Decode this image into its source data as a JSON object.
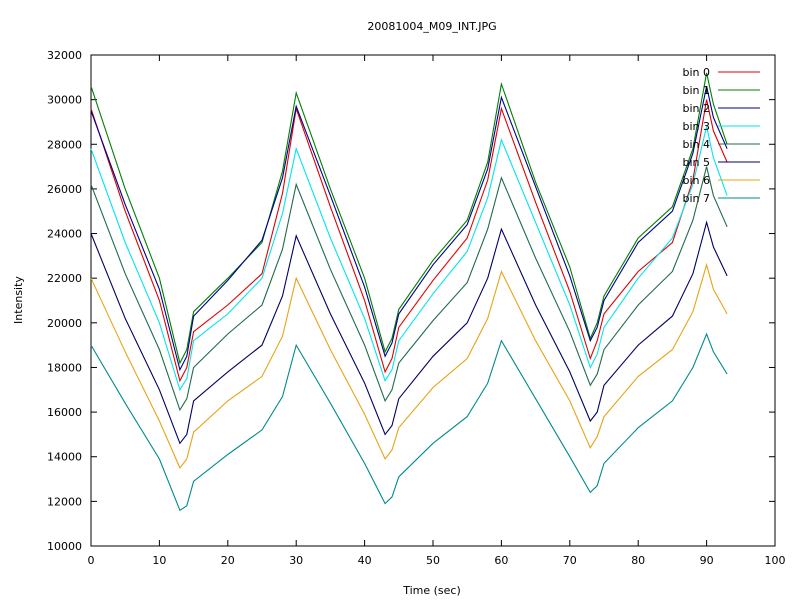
{
  "chart_data": {
    "type": "line",
    "title": "20081004_M09_INT.JPG",
    "xlabel": "Time (sec)",
    "ylabel": "Intensity",
    "xlim": [
      0,
      100
    ],
    "ylim": [
      10000,
      32000
    ],
    "xticks": [
      0,
      10,
      20,
      30,
      40,
      50,
      60,
      70,
      80,
      90,
      100
    ],
    "yticks": [
      10000,
      12000,
      14000,
      16000,
      18000,
      20000,
      22000,
      24000,
      26000,
      28000,
      30000,
      32000
    ],
    "xtick_labels": [
      "0",
      "10",
      "20",
      "30",
      "40",
      "50",
      "60",
      "70",
      "80",
      "90",
      "100"
    ],
    "ytick_labels": [
      "10000",
      "12000",
      "14000",
      "16000",
      "18000",
      "20000",
      "22000",
      "24000",
      "26000",
      "28000",
      "30000",
      "32000"
    ],
    "legend_position": "top-right",
    "grid": false,
    "x": [
      0,
      5,
      10,
      13,
      14,
      15,
      20,
      25,
      28,
      30,
      35,
      40,
      43,
      44,
      45,
      50,
      55,
      58,
      60,
      65,
      70,
      73,
      74,
      75,
      80,
      85,
      88,
      90,
      91,
      93
    ],
    "series": [
      {
        "name": "bin 0",
        "color": "#e00000",
        "values": [
          29600,
          25000,
          21000,
          17400,
          18000,
          19600,
          20800,
          22200,
          25800,
          29600,
          25200,
          21000,
          17800,
          18400,
          19800,
          21900,
          23800,
          26400,
          29600,
          25400,
          21400,
          18400,
          19200,
          20400,
          22300,
          23600,
          26400,
          30000,
          28600,
          27200
        ]
      },
      {
        "name": "bin 1",
        "color": "#008000",
        "values": [
          30600,
          26000,
          22000,
          18200,
          18800,
          20500,
          22000,
          23600,
          26800,
          30300,
          26000,
          22000,
          18700,
          19300,
          20600,
          22800,
          24600,
          27200,
          30700,
          26300,
          22500,
          19300,
          20000,
          21200,
          23800,
          25200,
          27800,
          31200,
          29800,
          28000
        ]
      },
      {
        "name": "bin 2",
        "color": "#00008b",
        "values": [
          29500,
          25300,
          21500,
          17900,
          18500,
          20300,
          21900,
          23700,
          26500,
          29700,
          25700,
          21600,
          18500,
          19100,
          20400,
          22600,
          24400,
          26900,
          30100,
          26100,
          22100,
          19200,
          19800,
          21000,
          23600,
          25000,
          27600,
          30600,
          29200,
          27800
        ]
      },
      {
        "name": "bin 3",
        "color": "#00e5ee",
        "values": [
          27800,
          23600,
          20000,
          17000,
          17500,
          19200,
          20400,
          22000,
          24900,
          27800,
          23800,
          20200,
          17400,
          17900,
          19200,
          21300,
          23200,
          25600,
          28200,
          24500,
          20800,
          18000,
          18600,
          19800,
          22000,
          23800,
          26200,
          28800,
          27400,
          25700
        ]
      },
      {
        "name": "bin 4",
        "color": "#1f6b4a",
        "values": [
          26200,
          22200,
          18800,
          16100,
          16600,
          18000,
          19500,
          20800,
          23300,
          26200,
          22400,
          19000,
          16500,
          17000,
          18200,
          20100,
          21800,
          24200,
          26500,
          22900,
          19600,
          17200,
          17700,
          18800,
          20800,
          22300,
          24600,
          27000,
          25700,
          24300
        ]
      },
      {
        "name": "bin 5",
        "color": "#000066",
        "values": [
          24000,
          20200,
          17000,
          14600,
          15000,
          16500,
          17800,
          19000,
          21200,
          23900,
          20400,
          17300,
          15000,
          15400,
          16600,
          18500,
          20000,
          22000,
          24200,
          20800,
          17800,
          15600,
          16000,
          17200,
          19000,
          20300,
          22200,
          24500,
          23400,
          22100
        ]
      },
      {
        "name": "bin 6",
        "color": "#e8a317",
        "values": [
          22000,
          18700,
          15600,
          13500,
          13900,
          15100,
          16500,
          17600,
          19400,
          22000,
          18800,
          15900,
          13900,
          14300,
          15300,
          17100,
          18400,
          20200,
          22300,
          19200,
          16500,
          14400,
          14900,
          15800,
          17600,
          18800,
          20500,
          22600,
          21500,
          20400
        ]
      },
      {
        "name": "bin 7",
        "color": "#008b8b",
        "values": [
          19000,
          16400,
          13900,
          11600,
          11800,
          12900,
          14100,
          15200,
          16700,
          19000,
          16400,
          13700,
          11900,
          12200,
          13100,
          14600,
          15800,
          17300,
          19200,
          16600,
          14000,
          12400,
          12700,
          13700,
          15300,
          16500,
          18000,
          19500,
          18700,
          17700
        ]
      }
    ]
  }
}
